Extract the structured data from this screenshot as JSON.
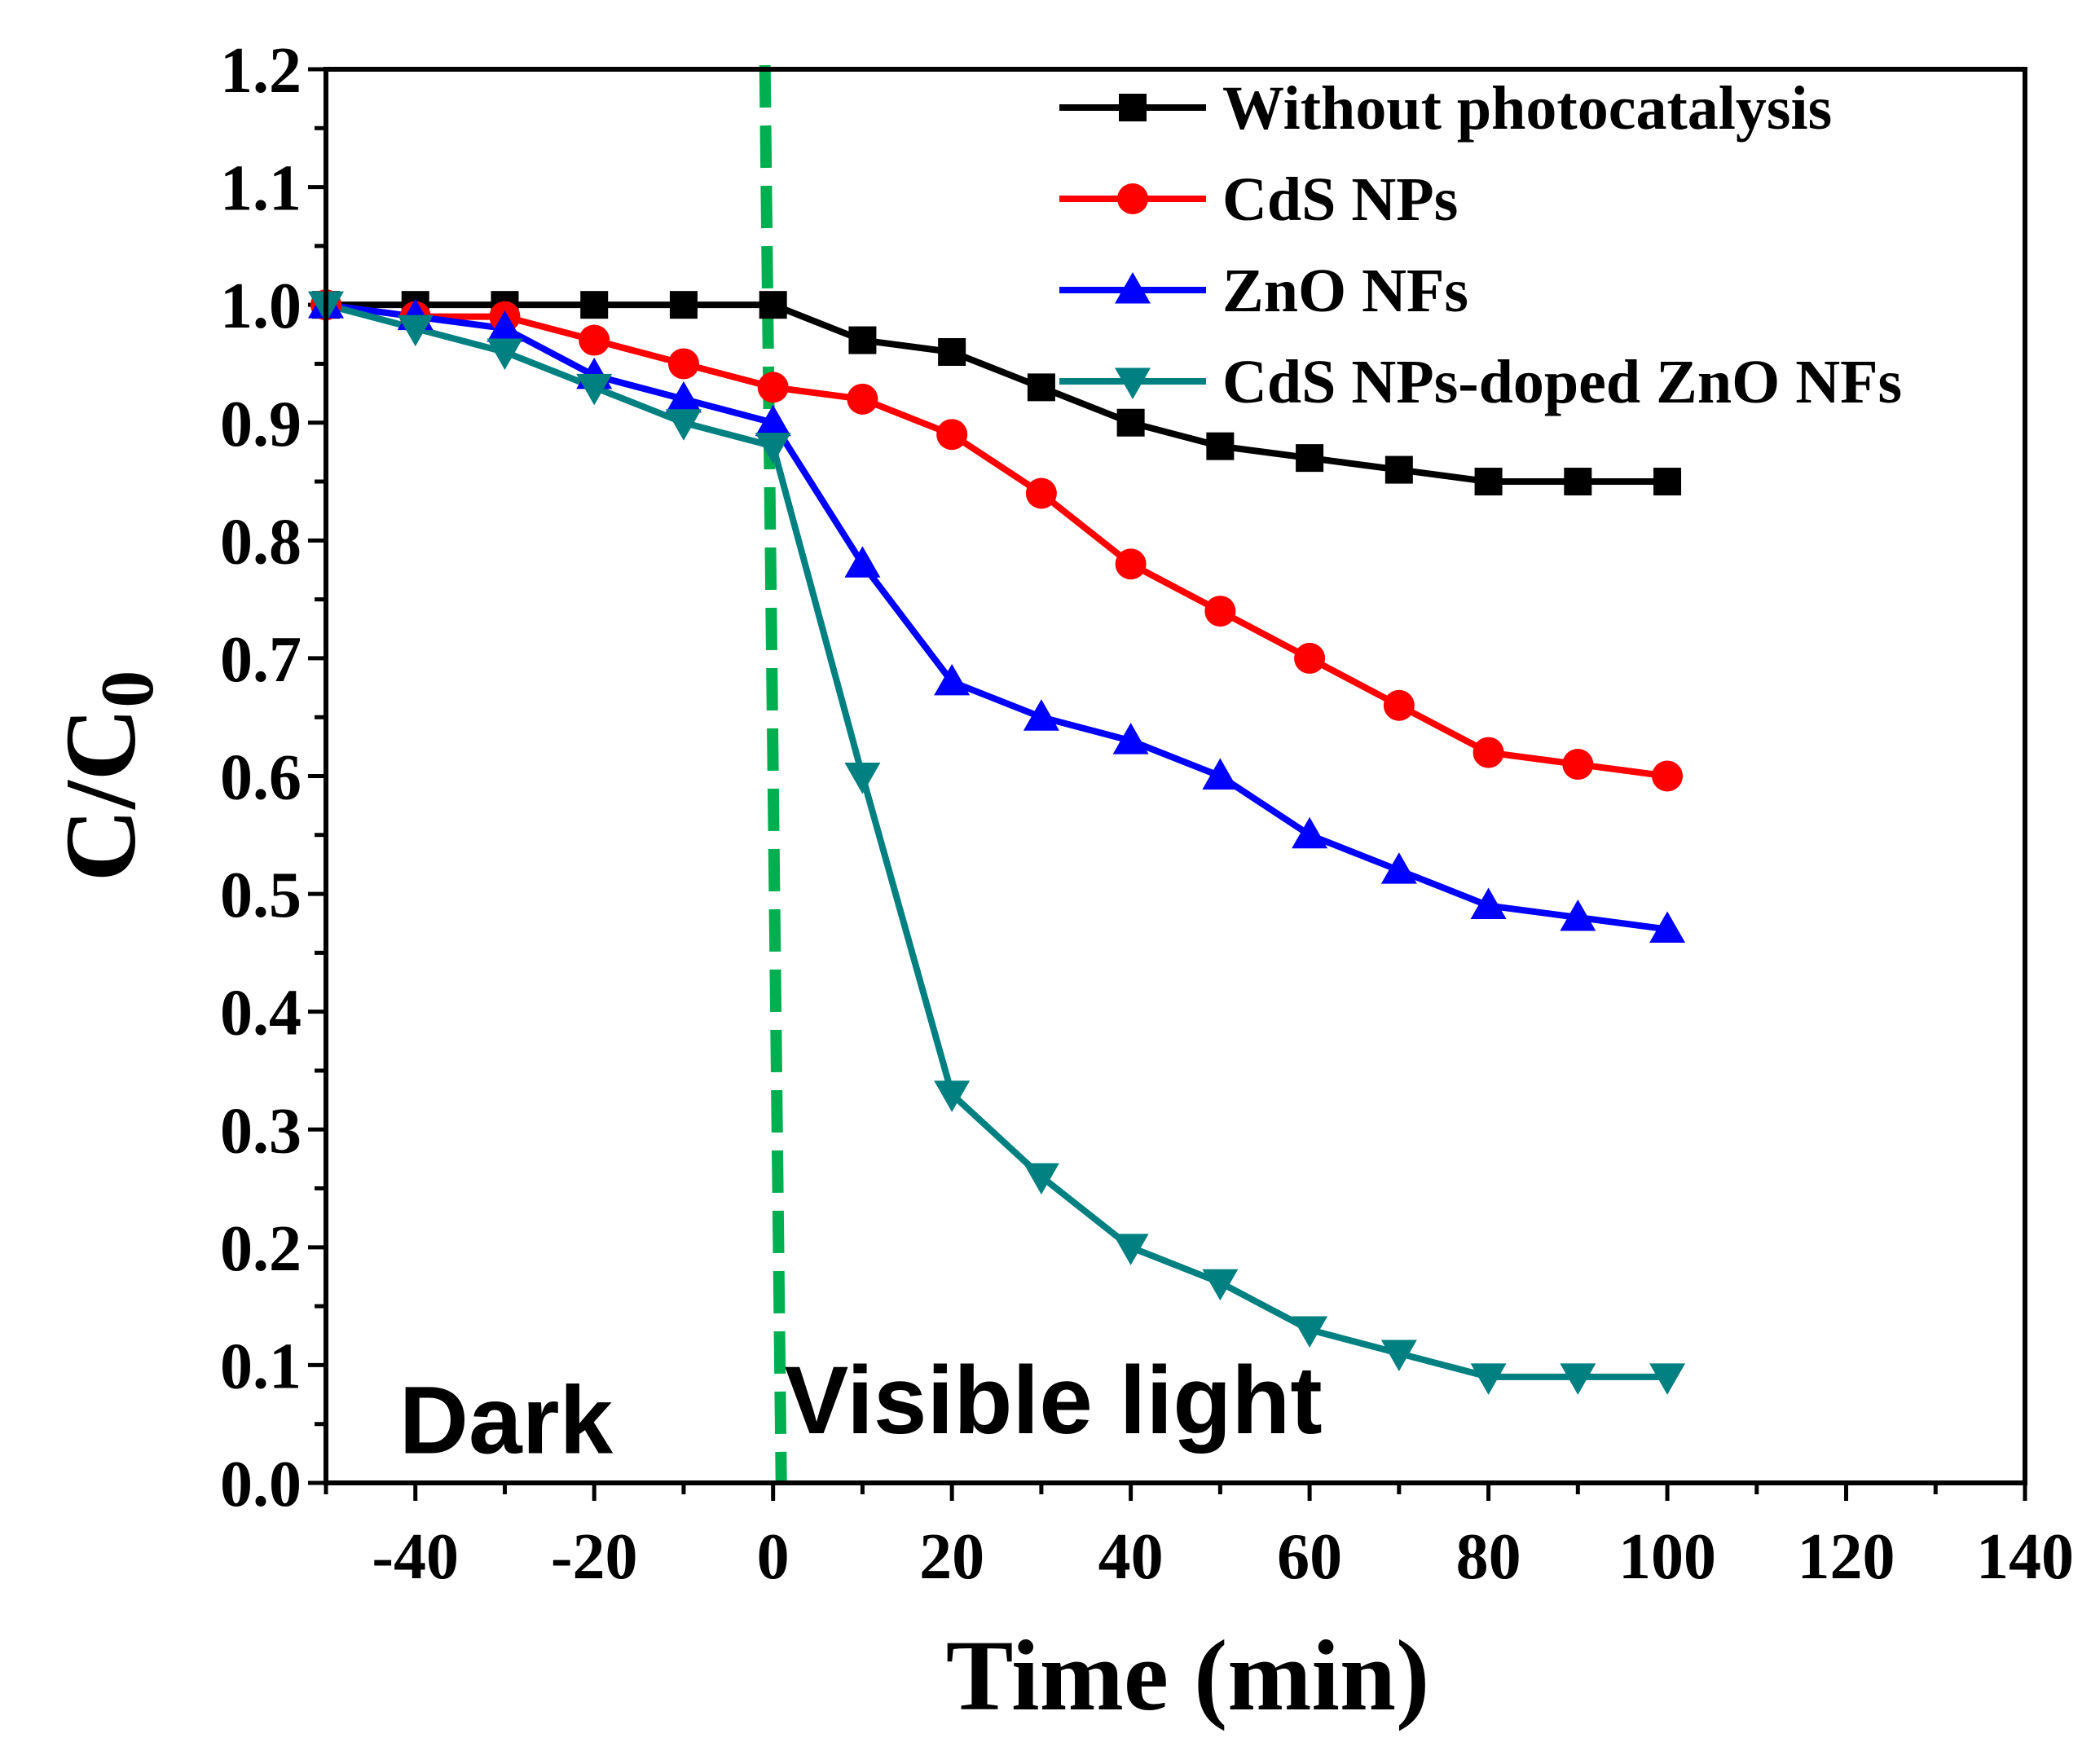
{
  "chart_data": {
    "type": "line",
    "title": "",
    "xlabel": "Time (min)",
    "ylabel_main": "C/C",
    "ylabel_sub": "0",
    "xlim": [
      -50,
      140
    ],
    "ylim": [
      0.0,
      1.2
    ],
    "x_ticks": [
      -40,
      -20,
      0,
      20,
      40,
      60,
      80,
      100,
      120,
      140
    ],
    "x_tick_labels": [
      "-40",
      "-20",
      "0",
      "20",
      "40",
      "60",
      "80",
      "100",
      "120",
      "140"
    ],
    "y_ticks": [
      0.0,
      0.1,
      0.2,
      0.3,
      0.4,
      0.5,
      0.6,
      0.7,
      0.8,
      0.9,
      1.0,
      1.1,
      1.2
    ],
    "y_tick_labels": [
      "0.0",
      "0.1",
      "0.2",
      "0.3",
      "0.4",
      "0.5",
      "0.6",
      "0.7",
      "0.8",
      "0.9",
      "1.0",
      "1.1",
      "1.2"
    ],
    "x": [
      -50,
      -40,
      -30,
      -20,
      -10,
      0,
      10,
      20,
      30,
      40,
      50,
      60,
      70,
      80,
      90,
      100
    ],
    "series": [
      {
        "name": "Without photocatalysis",
        "color": "#000000",
        "marker": "square",
        "values": [
          1.0,
          1.0,
          1.0,
          1.0,
          1.0,
          1.0,
          0.97,
          0.96,
          0.93,
          0.9,
          0.88,
          0.87,
          0.86,
          0.85,
          0.85,
          0.85
        ]
      },
      {
        "name": "CdS NPs",
        "color": "#ff0000",
        "marker": "circle",
        "values": [
          1.0,
          0.99,
          0.99,
          0.97,
          0.95,
          0.93,
          0.92,
          0.89,
          0.84,
          0.78,
          0.74,
          0.7,
          0.66,
          0.62,
          0.61,
          0.6
        ]
      },
      {
        "name": "ZnO NFs",
        "color": "#0000ff",
        "marker": "triangle-up",
        "values": [
          1.0,
          0.99,
          0.98,
          0.94,
          0.92,
          0.9,
          0.78,
          0.68,
          0.65,
          0.63,
          0.6,
          0.55,
          0.52,
          0.49,
          0.48,
          0.47
        ]
      },
      {
        "name": "CdS NPs-doped ZnO NFs",
        "color": "#008080",
        "marker": "triangle-down",
        "values": [
          1.0,
          0.98,
          0.96,
          0.93,
          0.9,
          0.88,
          0.6,
          0.33,
          0.26,
          0.2,
          0.17,
          0.13,
          0.11,
          0.09,
          0.09,
          0.09
        ]
      }
    ],
    "divider": {
      "x": 0,
      "color": "#00b050",
      "style": "dashed"
    },
    "annotations": [
      {
        "text": "Dark",
        "x": -40,
        "y": 0.06
      },
      {
        "text": "Visible light",
        "x": 4,
        "y": 0.07
      }
    ],
    "legend_position": "top-right",
    "grid": false
  }
}
